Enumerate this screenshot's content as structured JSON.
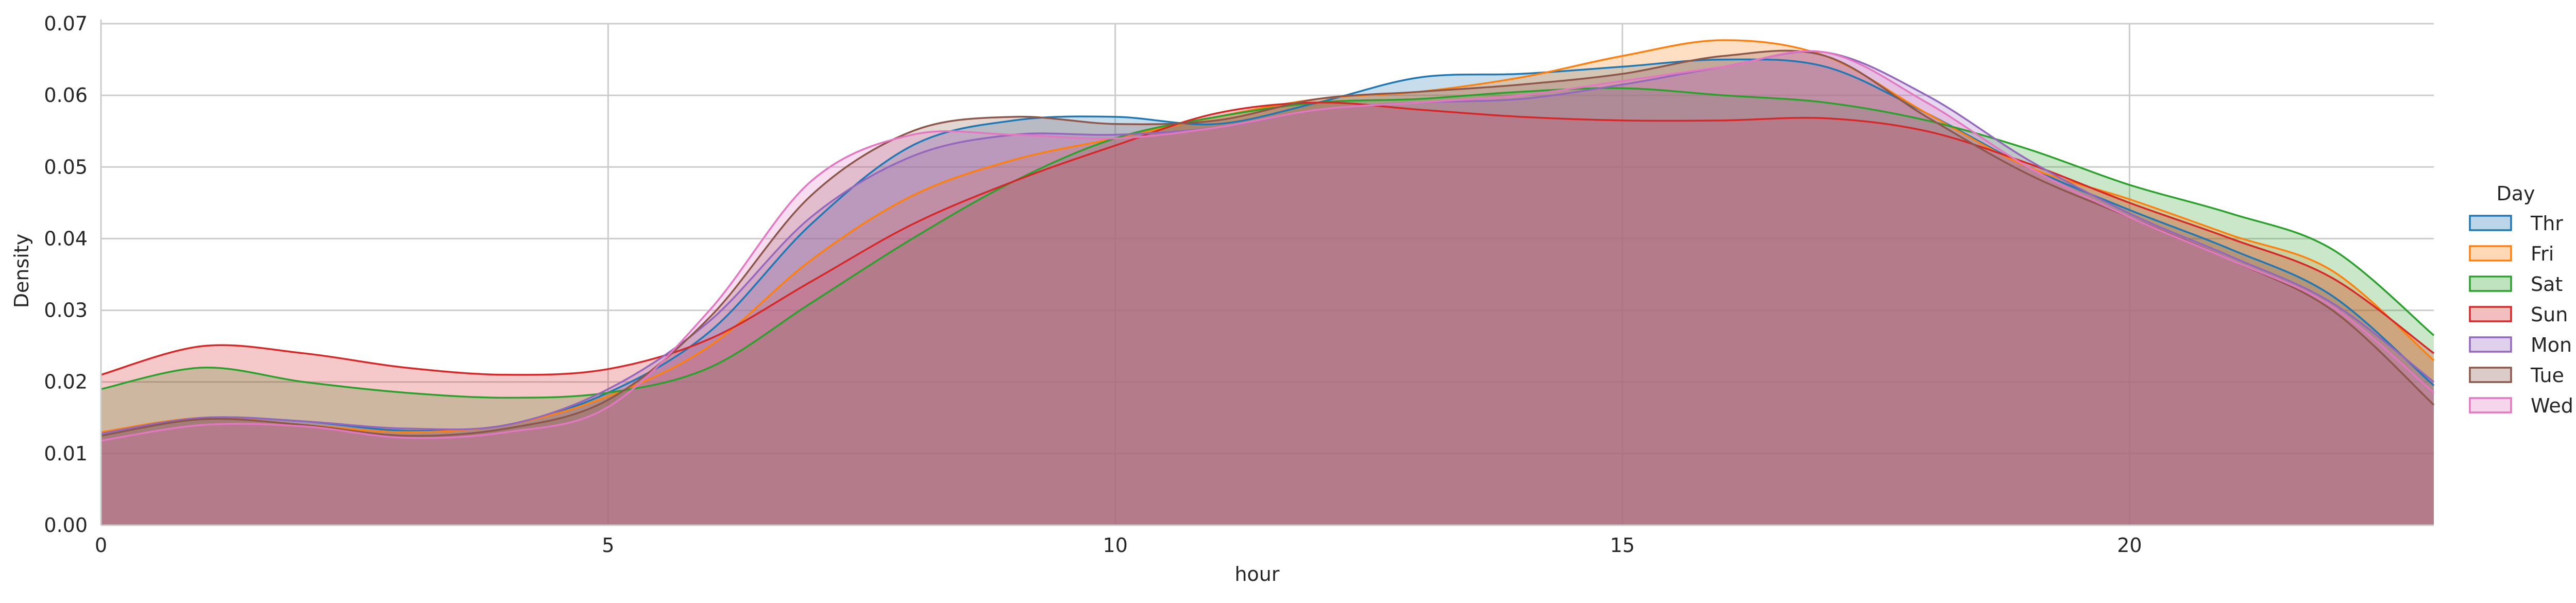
{
  "chart_data": {
    "type": "area",
    "title": "",
    "xlabel": "hour",
    "ylabel": "Density",
    "xlim": [
      0,
      23
    ],
    "ylim": [
      0,
      0.07
    ],
    "x_ticks": [
      0,
      5,
      10,
      15,
      20
    ],
    "y_ticks": [
      0.0,
      0.01,
      0.02,
      0.03,
      0.04,
      0.05,
      0.06,
      0.07
    ],
    "y_tick_labels": [
      "0.00",
      "0.01",
      "0.02",
      "0.03",
      "0.04",
      "0.05",
      "0.06",
      "0.07"
    ],
    "grid": true,
    "legend": {
      "title": "Day",
      "placement": "right"
    },
    "series": [
      {
        "name": "Thr",
        "color": "#1f77b4",
        "points": [
          [
            0,
            0.0128
          ],
          [
            1,
            0.015
          ],
          [
            2,
            0.0145
          ],
          [
            3,
            0.0132
          ],
          [
            4,
            0.014
          ],
          [
            5,
            0.0185
          ],
          [
            6,
            0.027
          ],
          [
            7,
            0.042
          ],
          [
            8,
            0.053
          ],
          [
            9,
            0.0565
          ],
          [
            10,
            0.057
          ],
          [
            11,
            0.056
          ],
          [
            12,
            0.059
          ],
          [
            13,
            0.0625
          ],
          [
            14,
            0.063
          ],
          [
            15,
            0.064
          ],
          [
            16,
            0.065
          ],
          [
            17,
            0.064
          ],
          [
            18,
            0.0575
          ],
          [
            19,
            0.05
          ],
          [
            20,
            0.044
          ],
          [
            21,
            0.0385
          ],
          [
            22,
            0.032
          ],
          [
            23,
            0.0195
          ]
        ]
      },
      {
        "name": "Fri",
        "color": "#ff7f0e",
        "points": [
          [
            0,
            0.013
          ],
          [
            1,
            0.015
          ],
          [
            2,
            0.014
          ],
          [
            3,
            0.013
          ],
          [
            4,
            0.014
          ],
          [
            5,
            0.018
          ],
          [
            6,
            0.025
          ],
          [
            7,
            0.037
          ],
          [
            8,
            0.046
          ],
          [
            9,
            0.051
          ],
          [
            10,
            0.054
          ],
          [
            11,
            0.057
          ],
          [
            12,
            0.0595
          ],
          [
            13,
            0.0605
          ],
          [
            14,
            0.0625
          ],
          [
            15,
            0.0655
          ],
          [
            16,
            0.0677
          ],
          [
            17,
            0.0655
          ],
          [
            18,
            0.0575
          ],
          [
            19,
            0.05
          ],
          [
            20,
            0.0455
          ],
          [
            21,
            0.0405
          ],
          [
            22,
            0.0355
          ],
          [
            23,
            0.023
          ]
        ]
      },
      {
        "name": "Sat",
        "color": "#2ca02c",
        "points": [
          [
            0,
            0.019
          ],
          [
            1,
            0.022
          ],
          [
            2,
            0.02
          ],
          [
            3,
            0.0185
          ],
          [
            4,
            0.0178
          ],
          [
            5,
            0.0185
          ],
          [
            6,
            0.022
          ],
          [
            7,
            0.031
          ],
          [
            8,
            0.04
          ],
          [
            9,
            0.048
          ],
          [
            10,
            0.054
          ],
          [
            11,
            0.057
          ],
          [
            12,
            0.059
          ],
          [
            13,
            0.0595
          ],
          [
            14,
            0.0605
          ],
          [
            15,
            0.061
          ],
          [
            16,
            0.06
          ],
          [
            17,
            0.059
          ],
          [
            18,
            0.0565
          ],
          [
            19,
            0.0525
          ],
          [
            20,
            0.0475
          ],
          [
            21,
            0.0435
          ],
          [
            22,
            0.0385
          ],
          [
            23,
            0.0265
          ]
        ]
      },
      {
        "name": "Sun",
        "color": "#d62728",
        "points": [
          [
            0,
            0.021
          ],
          [
            1,
            0.025
          ],
          [
            2,
            0.024
          ],
          [
            3,
            0.022
          ],
          [
            4,
            0.021
          ],
          [
            5,
            0.0218
          ],
          [
            6,
            0.026
          ],
          [
            7,
            0.034
          ],
          [
            8,
            0.042
          ],
          [
            9,
            0.048
          ],
          [
            10,
            0.053
          ],
          [
            11,
            0.0575
          ],
          [
            12,
            0.059
          ],
          [
            13,
            0.058
          ],
          [
            14,
            0.057
          ],
          [
            15,
            0.0565
          ],
          [
            16,
            0.0565
          ],
          [
            17,
            0.0568
          ],
          [
            18,
            0.055
          ],
          [
            19,
            0.0505
          ],
          [
            20,
            0.045
          ],
          [
            21,
            0.04
          ],
          [
            22,
            0.0345
          ],
          [
            23,
            0.024
          ]
        ]
      },
      {
        "name": "Mon",
        "color": "#9467bd",
        "points": [
          [
            0,
            0.0128
          ],
          [
            1,
            0.015
          ],
          [
            2,
            0.0145
          ],
          [
            3,
            0.0135
          ],
          [
            4,
            0.014
          ],
          [
            5,
            0.019
          ],
          [
            6,
            0.0285
          ],
          [
            7,
            0.043
          ],
          [
            8,
            0.0515
          ],
          [
            9,
            0.0545
          ],
          [
            10,
            0.0545
          ],
          [
            11,
            0.0555
          ],
          [
            12,
            0.058
          ],
          [
            13,
            0.059
          ],
          [
            14,
            0.0595
          ],
          [
            15,
            0.0615
          ],
          [
            16,
            0.064
          ],
          [
            17,
            0.066
          ],
          [
            18,
            0.06
          ],
          [
            19,
            0.051
          ],
          [
            20,
            0.0435
          ],
          [
            21,
            0.0375
          ],
          [
            22,
            0.031
          ],
          [
            23,
            0.02
          ]
        ]
      },
      {
        "name": "Tue",
        "color": "#8c564b",
        "points": [
          [
            0,
            0.0125
          ],
          [
            1,
            0.0148
          ],
          [
            2,
            0.014
          ],
          [
            3,
            0.0125
          ],
          [
            4,
            0.0135
          ],
          [
            5,
            0.0175
          ],
          [
            6,
            0.029
          ],
          [
            7,
            0.046
          ],
          [
            8,
            0.055
          ],
          [
            9,
            0.057
          ],
          [
            10,
            0.056
          ],
          [
            11,
            0.0565
          ],
          [
            12,
            0.0595
          ],
          [
            13,
            0.0605
          ],
          [
            14,
            0.0615
          ],
          [
            15,
            0.063
          ],
          [
            16,
            0.0655
          ],
          [
            17,
            0.0655
          ],
          [
            18,
            0.057
          ],
          [
            19,
            0.049
          ],
          [
            20,
            0.043
          ],
          [
            21,
            0.037
          ],
          [
            22,
            0.03
          ],
          [
            23,
            0.0168
          ]
        ]
      },
      {
        "name": "Wed",
        "color": "#e377c2",
        "points": [
          [
            0,
            0.0118
          ],
          [
            1,
            0.014
          ],
          [
            2,
            0.0138
          ],
          [
            3,
            0.0122
          ],
          [
            4,
            0.013
          ],
          [
            5,
            0.0165
          ],
          [
            6,
            0.03
          ],
          [
            7,
            0.048
          ],
          [
            8,
            0.0545
          ],
          [
            9,
            0.0545
          ],
          [
            10,
            0.054
          ],
          [
            11,
            0.0555
          ],
          [
            12,
            0.058
          ],
          [
            13,
            0.059
          ],
          [
            14,
            0.06
          ],
          [
            15,
            0.062
          ],
          [
            16,
            0.064
          ],
          [
            17,
            0.066
          ],
          [
            18,
            0.059
          ],
          [
            19,
            0.05
          ],
          [
            20,
            0.043
          ],
          [
            21,
            0.037
          ],
          [
            22,
            0.0305
          ],
          [
            23,
            0.0185
          ]
        ]
      }
    ]
  }
}
